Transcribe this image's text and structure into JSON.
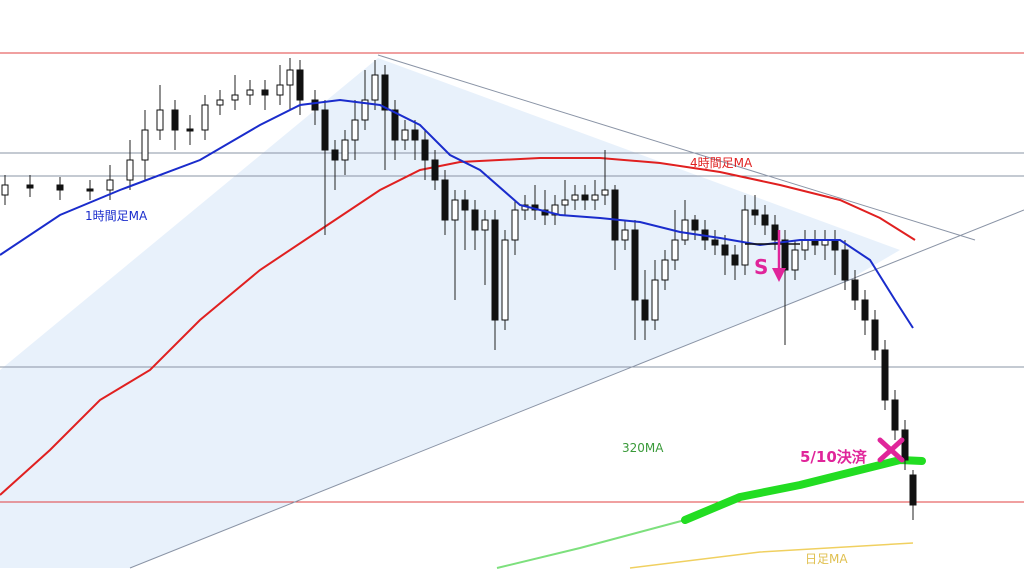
{
  "annotations": {
    "ma_1h": "1時間足MA",
    "ma_4h": "4時間足MA",
    "ma_320": "320MA",
    "ma_daily": "日足MA",
    "exit": "5/10決済",
    "sell": "S"
  }
}
